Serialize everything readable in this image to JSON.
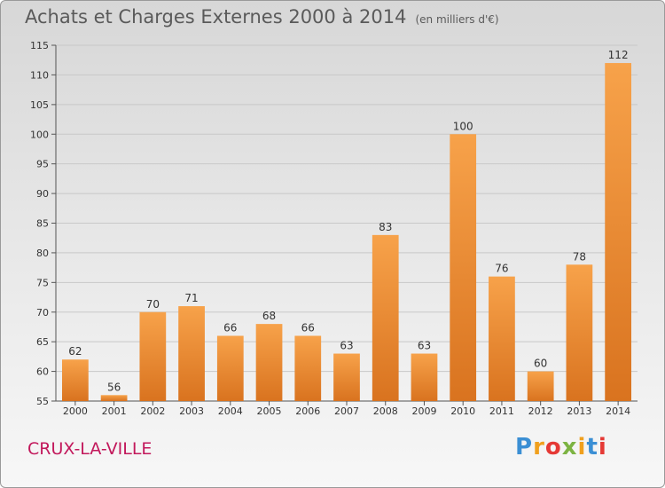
{
  "title": "Achats et Charges Externes 2000 à 2014",
  "subtitle": "(en milliers d'€)",
  "place": "CRUX-LA-VILLE",
  "logo": {
    "letters": [
      "P",
      "r",
      "o",
      "x",
      "i",
      "t",
      "i"
    ],
    "colors": [
      "#3b8fd4",
      "#f0a01e",
      "#e53935",
      "#7cb342",
      "#f0a01e",
      "#3b8fd4",
      "#e53935"
    ]
  },
  "colors": {
    "bar_light": "#f7a24a",
    "bar_dark": "#d9731f",
    "grid": "#c8c8c8"
  },
  "chart_data": {
    "type": "bar",
    "title": "Achats et Charges Externes 2000 à 2014",
    "subtitle": "(en milliers d'€)",
    "categories": [
      "2000",
      "2001",
      "2002",
      "2003",
      "2004",
      "2005",
      "2006",
      "2007",
      "2008",
      "2009",
      "2010",
      "2011",
      "2012",
      "2013",
      "2014"
    ],
    "values": [
      62,
      56,
      70,
      71,
      66,
      68,
      66,
      63,
      83,
      63,
      100,
      76,
      60,
      78,
      112
    ],
    "ylim": [
      55,
      115
    ],
    "yticks": [
      55,
      60,
      65,
      70,
      75,
      80,
      85,
      90,
      95,
      100,
      105,
      110,
      115
    ],
    "grid": true,
    "data_labels": true
  }
}
